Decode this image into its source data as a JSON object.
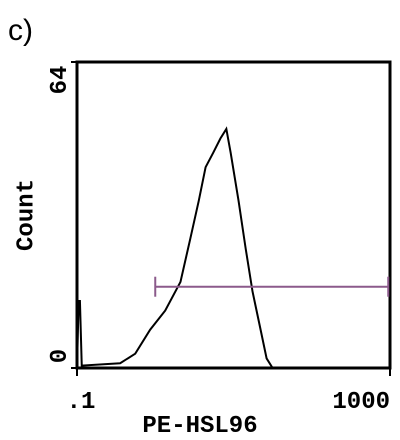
{
  "chart_data": {
    "type": "histogram-line",
    "title": "c)",
    "x_label": "PE-HSL96",
    "y_label": "Count",
    "x_scale": "log",
    "xlim": [
      0.1,
      1000
    ],
    "xticks": [
      {
        "value": 0.1,
        "label": ".1"
      },
      1000
    ],
    "ylim": [
      0,
      64
    ],
    "yticks": [
      0,
      64
    ],
    "color": "#000000",
    "x": [
      0.1,
      0.105,
      0.109,
      0.115,
      0.356,
      0.555,
      0.86,
      1.34,
      2.1,
      2.8,
      3.6,
      4.4,
      5.5,
      6.8,
      8.1,
      9.2,
      11.6,
      14.3,
      17.5,
      22.2,
      26.5,
      31.6,
      1000
    ],
    "values": [
      0,
      14,
      14,
      0.5,
      1,
      3,
      8,
      12,
      18,
      27,
      35,
      42,
      45,
      48,
      50,
      45,
      35,
      25,
      16,
      8,
      2,
      0,
      0
    ],
    "marker": {
      "range": [
        1,
        950
      ],
      "level": 17,
      "color": "#8b5a8b"
    }
  }
}
